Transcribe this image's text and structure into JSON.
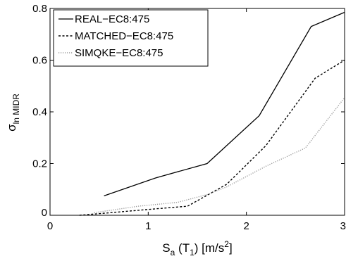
{
  "chart_data": {
    "type": "line",
    "title": "",
    "xlabel": {
      "main": "S",
      "sub": "a",
      "mid": " (T",
      "sub2": "1",
      "tail": ") [m/s",
      "sup": "2",
      "end": "]"
    },
    "ylabel": {
      "main": "σ",
      "sub": "ln MIDR"
    },
    "xlim": [
      0,
      3
    ],
    "ylim": [
      0,
      0.8
    ],
    "xticks": [
      0,
      1,
      2,
      3
    ],
    "xtick_labels": [
      "0",
      "1",
      "2",
      "3"
    ],
    "yticks": [
      0,
      0.2,
      0.4,
      0.6,
      0.8
    ],
    "ytick_labels": [
      "0",
      "0.2",
      "0.4",
      "0.6",
      "0.8"
    ],
    "grid": false,
    "legend_position": "top-left",
    "series": [
      {
        "name": "REAL−EC8:475",
        "style": "solid",
        "color": "#000000",
        "x": [
          0.55,
          1.08,
          1.6,
          2.13,
          2.66,
          3.0
        ],
        "y": [
          0.075,
          0.145,
          0.2,
          0.385,
          0.73,
          0.785
        ]
      },
      {
        "name": "MATCHED−EC8:475",
        "style": "dashed",
        "color": "#000000",
        "x": [
          0.3,
          0.55,
          1.08,
          1.4,
          1.8,
          2.2,
          2.7,
          3.0
        ],
        "y": [
          0.0,
          0.008,
          0.025,
          0.035,
          0.12,
          0.27,
          0.53,
          0.6
        ]
      },
      {
        "name": "SIMQKE−EC8:475",
        "style": "dotted",
        "color": "#9a9a9a",
        "x": [
          0.45,
          0.9,
          1.3,
          1.6,
          1.8,
          2.2,
          2.6,
          3.0
        ],
        "y": [
          0.01,
          0.035,
          0.05,
          0.08,
          0.11,
          0.19,
          0.26,
          0.455
        ]
      }
    ]
  }
}
